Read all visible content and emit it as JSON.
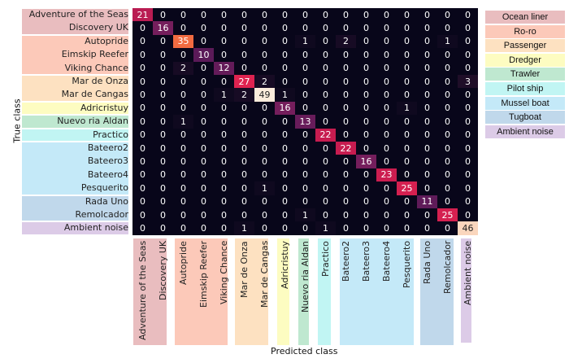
{
  "chart_data": {
    "type": "heatmap",
    "title": "",
    "xlabel": "Predicted class",
    "ylabel": "True class",
    "classes": [
      "Adventure of the Seas",
      "Discovery UK",
      "Autopride",
      "Eimskip Reefer",
      "Viking Chance",
      "Mar de Onza",
      "Mar de Cangas",
      "Adricristuy",
      "Nuevo ria Aldan",
      "Practico",
      "Bateero2",
      "Bateero3",
      "Bateero4",
      "Pesquerito",
      "Rada Uno",
      "Remolcador",
      "Ambient noise"
    ],
    "matrix": [
      [
        21,
        0,
        0,
        0,
        0,
        0,
        0,
        0,
        0,
        0,
        0,
        0,
        0,
        0,
        0,
        0,
        0
      ],
      [
        0,
        16,
        0,
        0,
        0,
        0,
        0,
        0,
        0,
        0,
        0,
        0,
        0,
        0,
        0,
        0,
        0
      ],
      [
        0,
        0,
        35,
        0,
        0,
        0,
        0,
        0,
        1,
        0,
        2,
        0,
        0,
        0,
        0,
        1,
        0
      ],
      [
        0,
        0,
        0,
        10,
        0,
        0,
        0,
        0,
        0,
        0,
        0,
        0,
        0,
        0,
        0,
        0,
        0
      ],
      [
        0,
        0,
        2,
        0,
        12,
        0,
        0,
        0,
        0,
        0,
        0,
        0,
        0,
        0,
        0,
        0,
        0
      ],
      [
        0,
        0,
        0,
        0,
        0,
        27,
        2,
        0,
        0,
        0,
        0,
        0,
        0,
        0,
        0,
        0,
        3
      ],
      [
        0,
        0,
        0,
        0,
        1,
        2,
        49,
        1,
        0,
        0,
        0,
        0,
        0,
        0,
        0,
        0,
        0
      ],
      [
        0,
        0,
        0,
        0,
        0,
        0,
        0,
        16,
        0,
        0,
        0,
        0,
        0,
        1,
        0,
        0,
        0
      ],
      [
        0,
        0,
        1,
        0,
        0,
        0,
        0,
        0,
        13,
        0,
        0,
        0,
        0,
        0,
        0,
        0,
        0
      ],
      [
        0,
        0,
        0,
        0,
        0,
        0,
        0,
        0,
        0,
        22,
        0,
        0,
        0,
        0,
        0,
        0,
        0
      ],
      [
        0,
        0,
        0,
        0,
        0,
        0,
        0,
        0,
        0,
        0,
        22,
        0,
        0,
        0,
        0,
        0,
        0
      ],
      [
        0,
        0,
        0,
        0,
        0,
        0,
        0,
        0,
        0,
        0,
        0,
        16,
        0,
        0,
        0,
        0,
        0
      ],
      [
        0,
        0,
        0,
        0,
        0,
        0,
        0,
        0,
        0,
        0,
        0,
        0,
        23,
        0,
        0,
        0,
        0
      ],
      [
        0,
        0,
        0,
        0,
        0,
        0,
        1,
        0,
        0,
        0,
        0,
        0,
        0,
        25,
        0,
        0,
        0
      ],
      [
        0,
        0,
        0,
        0,
        0,
        0,
        0,
        0,
        0,
        0,
        0,
        0,
        0,
        0,
        11,
        0,
        0
      ],
      [
        0,
        0,
        0,
        0,
        0,
        0,
        0,
        0,
        1,
        0,
        0,
        0,
        0,
        0,
        0,
        25,
        0
      ],
      [
        0,
        0,
        0,
        0,
        0,
        1,
        0,
        0,
        0,
        1,
        0,
        0,
        0,
        0,
        0,
        0,
        46
      ]
    ],
    "value_range": [
      0,
      49
    ],
    "groups": [
      {
        "name": "Ocean liner",
        "rows": [
          0,
          1
        ],
        "color": "#e9bdbf"
      },
      {
        "name": "Ro-ro",
        "rows": [
          2,
          4
        ],
        "color": "#fcc9b9"
      },
      {
        "name": "Passenger",
        "rows": [
          5,
          6
        ],
        "color": "#fde1c1"
      },
      {
        "name": "Dredger",
        "rows": [
          7,
          7
        ],
        "color": "#fdfcc1"
      },
      {
        "name": "Trawler",
        "rows": [
          8,
          8
        ],
        "color": "#bfe8d0"
      },
      {
        "name": "Pilot ship",
        "rows": [
          9,
          9
        ],
        "color": "#c1f5f3"
      },
      {
        "name": "Mussel boat",
        "rows": [
          10,
          13
        ],
        "color": "#c4e9f8"
      },
      {
        "name": "Tugboat",
        "rows": [
          14,
          15
        ],
        "color": "#c0d8eb"
      },
      {
        "name": "Ambient noise",
        "rows": [
          16,
          16
        ],
        "color": "#dccbe7"
      }
    ],
    "legend_position": "right"
  }
}
